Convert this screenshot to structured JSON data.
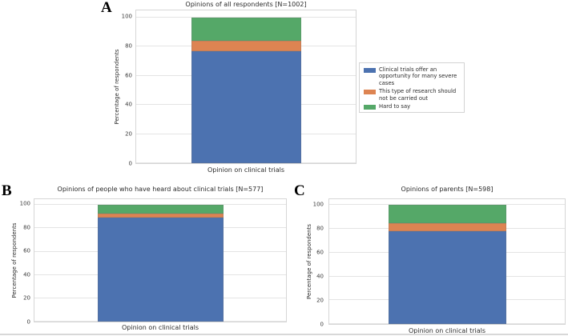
{
  "figure": {
    "panel_labels": [
      "A",
      "B",
      "C"
    ],
    "bottom_border_color": "#d8d8d8",
    "background": "#ffffff"
  },
  "palette": {
    "blue": "#4c72b0",
    "orange": "#dd8452",
    "green": "#55a868"
  },
  "legend": {
    "position": "right-of-chart-A",
    "items": [
      {
        "label": "Clinical trials offer an opportunity for many severe cases",
        "color": "#4c72b0"
      },
      {
        "label": "This type of research should not be carried out",
        "color": "#dd8452"
      },
      {
        "label": "Hard to say",
        "color": "#55a868"
      }
    ]
  },
  "chart_data": [
    {
      "type": "bar",
      "stacked": true,
      "title": "Opinions of all respondents [N=1002]",
      "xlabel": "Opinion on clinical trials",
      "ylabel": "Percentage of respondents",
      "n_bars": 1,
      "yticks": [
        0,
        20,
        40,
        60,
        80,
        100
      ],
      "ylim": [
        0,
        105
      ],
      "grid": true,
      "series": [
        {
          "name": "Clinical trials offer an opportunity for many severe cases",
          "color": "#4c72b0",
          "values": [
            77
          ]
        },
        {
          "name": "This type of research should not be carried out",
          "color": "#dd8452",
          "values": [
            7
          ]
        },
        {
          "name": "Hard to say",
          "color": "#55a868",
          "values": [
            16
          ]
        }
      ]
    },
    {
      "type": "bar",
      "stacked": true,
      "title": "Opinions of people who have heard about clinical trials [N=577]",
      "xlabel": "Opinion on clinical trials",
      "ylabel": "Percentage of respondents",
      "n_bars": 1,
      "yticks": [
        0,
        20,
        40,
        60,
        80,
        100
      ],
      "ylim": [
        0,
        105
      ],
      "grid": true,
      "series": [
        {
          "name": "Clinical trials offer an opportunity for many severe cases",
          "color": "#4c72b0",
          "values": [
            89
          ]
        },
        {
          "name": "This type of research should not be carried out",
          "color": "#dd8452",
          "values": [
            4
          ]
        },
        {
          "name": "Hard to say",
          "color": "#55a868",
          "values": [
            7
          ]
        }
      ]
    },
    {
      "type": "bar",
      "stacked": true,
      "title": "Opinions of parents [N=598]",
      "xlabel": "Opinion on clinical trials",
      "ylabel": "Percentage of respondents",
      "n_bars": 1,
      "yticks": [
        0,
        20,
        40,
        60,
        80,
        100
      ],
      "ylim": [
        0,
        105
      ],
      "grid": true,
      "series": [
        {
          "name": "Clinical trials offer an opportunity for many severe cases",
          "color": "#4c72b0",
          "values": [
            78
          ]
        },
        {
          "name": "This type of research should not be carried out",
          "color": "#dd8452",
          "values": [
            7
          ]
        },
        {
          "name": "Hard to say",
          "color": "#55a868",
          "values": [
            15
          ]
        }
      ]
    }
  ]
}
